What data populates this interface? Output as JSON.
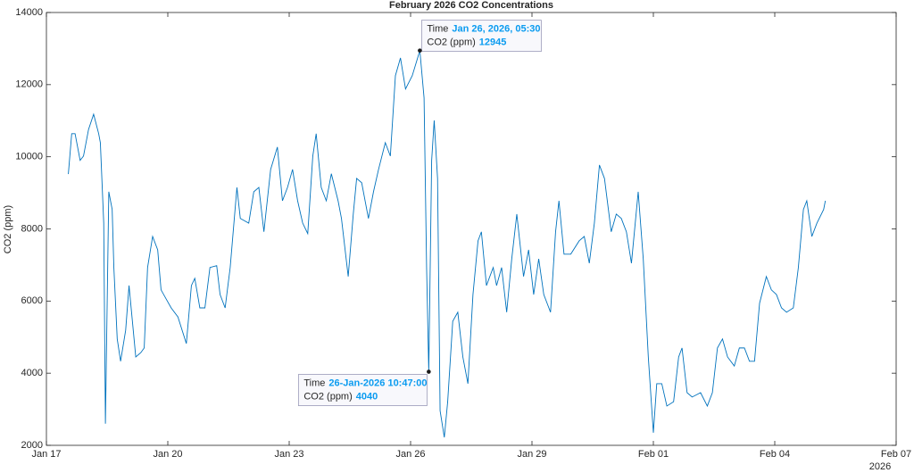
{
  "chart_data": {
    "type": "line",
    "title": "February 2026 CO2 Concentrations",
    "ylabel": "CO2 (ppm)",
    "x_secondary_label": "2026",
    "xlim": [
      "2026-01-17T00:00",
      "2026-02-07T00:00"
    ],
    "xticks": [
      {
        "value": "2026-01-17T00:00",
        "label": "Jan 17"
      },
      {
        "value": "2026-01-20T00:00",
        "label": "Jan 20"
      },
      {
        "value": "2026-01-23T00:00",
        "label": "Jan 23"
      },
      {
        "value": "2026-01-26T00:00",
        "label": "Jan 26"
      },
      {
        "value": "2026-01-29T00:00",
        "label": "Jan 29"
      },
      {
        "value": "2026-02-01T00:00",
        "label": "Feb 01"
      },
      {
        "value": "2026-02-04T00:00",
        "label": "Feb 04"
      },
      {
        "value": "2026-02-07T00:00",
        "label": "Feb 07"
      }
    ],
    "ylim": [
      2000,
      14000
    ],
    "yticks": [
      2000,
      4000,
      6000,
      8000,
      10000,
      12000,
      14000
    ],
    "grid": false,
    "x": [
      "2026-01-17T13:00",
      "2026-01-17T15:00",
      "2026-01-17T17:00",
      "2026-01-17T20:00",
      "2026-01-17T22:00",
      "2026-01-18T01:00",
      "2026-01-18T04:00",
      "2026-01-18T07:00",
      "2026-01-18T08:00",
      "2026-01-18T10:00",
      "2026-01-18T11:00",
      "2026-01-18T13:00",
      "2026-01-18T15:00",
      "2026-01-18T16:00",
      "2026-01-18T18:00",
      "2026-01-18T20:00",
      "2026-01-18T23:00",
      "2026-01-19T01:00",
      "2026-01-19T03:00",
      "2026-01-19T05:00",
      "2026-01-19T08:00",
      "2026-01-19T10:00",
      "2026-01-19T12:00",
      "2026-01-19T15:00",
      "2026-01-19T18:00",
      "2026-01-19T20:00",
      "2026-01-19T23:00",
      "2026-01-20T02:00",
      "2026-01-20T06:00",
      "2026-01-20T11:00",
      "2026-01-20T14:00",
      "2026-01-20T16:00",
      "2026-01-20T19:00",
      "2026-01-20T22:00",
      "2026-01-21T01:00",
      "2026-01-21T05:00",
      "2026-01-21T07:00",
      "2026-01-21T10:00",
      "2026-01-21T13:00",
      "2026-01-21T17:00",
      "2026-01-21T19:00",
      "2026-01-22T00:00",
      "2026-01-22T03:00",
      "2026-01-22T06:00",
      "2026-01-22T09:00",
      "2026-01-22T13:00",
      "2026-01-22T17:00",
      "2026-01-22T20:00",
      "2026-01-22T23:00",
      "2026-01-23T02:00",
      "2026-01-23T05:00",
      "2026-01-23T08:00",
      "2026-01-23T11:00",
      "2026-01-23T14:00",
      "2026-01-23T16:00",
      "2026-01-23T19:00",
      "2026-01-23T22:00",
      "2026-01-24T01:00",
      "2026-01-24T05:00",
      "2026-01-24T07:00",
      "2026-01-24T11:00",
      "2026-01-24T14:00",
      "2026-01-24T16:00",
      "2026-01-24T19:00",
      "2026-01-24T23:00",
      "2026-01-25T02:00",
      "2026-01-25T05:00",
      "2026-01-25T09:00",
      "2026-01-25T12:00",
      "2026-01-25T15:00",
      "2026-01-25T18:00",
      "2026-01-25T21:00",
      "2026-01-26T01:00",
      "2026-01-26T05:30",
      "2026-01-26T08:00",
      "2026-01-26T09:30",
      "2026-01-26T10:47",
      "2026-01-26T12:30",
      "2026-01-26T14:00",
      "2026-01-26T16:00",
      "2026-01-26T17:30",
      "2026-01-26T20:00",
      "2026-01-26T22:00",
      "2026-01-27T01:00",
      "2026-01-27T04:00",
      "2026-01-27T07:00",
      "2026-01-27T10:00",
      "2026-01-27T13:00",
      "2026-01-27T16:00",
      "2026-01-27T18:00",
      "2026-01-27T21:00",
      "2026-01-28T01:00",
      "2026-01-28T03:00",
      "2026-01-28T06:00",
      "2026-01-28T09:00",
      "2026-01-28T12:00",
      "2026-01-28T15:00",
      "2026-01-28T19:00",
      "2026-01-28T22:00",
      "2026-01-29T01:00",
      "2026-01-29T04:00",
      "2026-01-29T07:00",
      "2026-01-29T11:00",
      "2026-01-29T14:00",
      "2026-01-29T16:00",
      "2026-01-29T19:00",
      "2026-01-29T23:00",
      "2026-01-30T04:00",
      "2026-01-30T07:00",
      "2026-01-30T10:00",
      "2026-01-30T13:00",
      "2026-01-30T16:00",
      "2026-01-30T19:00",
      "2026-01-30T23:00",
      "2026-01-31T02:00",
      "2026-01-31T05:00",
      "2026-01-31T08:00",
      "2026-01-31T11:00",
      "2026-01-31T15:00",
      "2026-01-31T18:00",
      "2026-01-31T21:00",
      "2026-02-01T00:00",
      "2026-02-01T02:00",
      "2026-02-01T05:00",
      "2026-02-01T08:00",
      "2026-02-01T12:00",
      "2026-02-01T15:00",
      "2026-02-01T17:00",
      "2026-02-01T20:00",
      "2026-02-01T23:00",
      "2026-02-02T04:00",
      "2026-02-02T08:00",
      "2026-02-02T11:00",
      "2026-02-02T14:00",
      "2026-02-02T17:00",
      "2026-02-02T20:00",
      "2026-02-03T00:00",
      "2026-02-03T03:00",
      "2026-02-03T06:00",
      "2026-02-03T09:00",
      "2026-02-03T12:00",
      "2026-02-03T15:00",
      "2026-02-03T19:00",
      "2026-02-03T22:00",
      "2026-02-04T01:00",
      "2026-02-04T04:00",
      "2026-02-04T07:00",
      "2026-02-04T11:00",
      "2026-02-04T14:00",
      "2026-02-04T17:00",
      "2026-02-04T19:00",
      "2026-02-04T22:00",
      "2026-02-05T01:00",
      "2026-02-05T05:00",
      "2026-02-05T06:00"
    ],
    "series": [
      {
        "name": "CO2 (ppm)",
        "color": "#0072bd",
        "values": [
          9520,
          10640,
          10640,
          9900,
          10020,
          10760,
          11180,
          10640,
          10390,
          8160,
          2600,
          9030,
          8540,
          6930,
          4950,
          4330,
          5190,
          6430,
          5440,
          4450,
          4570,
          4700,
          6930,
          7790,
          7420,
          6310,
          6060,
          5810,
          5560,
          4820,
          6430,
          6630,
          5810,
          5810,
          6930,
          6980,
          6180,
          5810,
          6930,
          9150,
          8290,
          8160,
          9030,
          9150,
          7920,
          9650,
          10270,
          8780,
          9150,
          9650,
          8780,
          8160,
          7870,
          10020,
          10640,
          9150,
          8780,
          9530,
          8780,
          8290,
          6680,
          8410,
          9400,
          9280,
          8290,
          9030,
          9650,
          10390,
          10020,
          12250,
          12740,
          11880,
          12250,
          12945,
          11630,
          6930,
          4040,
          9900,
          11010,
          9400,
          2960,
          2220,
          3210,
          5440,
          5690,
          4450,
          3710,
          6180,
          7670,
          7920,
          6430,
          6930,
          6430,
          6930,
          5690,
          7170,
          8410,
          6680,
          7420,
          6180,
          7170,
          6180,
          5690,
          7920,
          8780,
          7300,
          7300,
          7670,
          7790,
          7050,
          8160,
          9770,
          9400,
          7920,
          8410,
          8290,
          7920,
          7050,
          9030,
          7170,
          4450,
          2350,
          3710,
          3710,
          3090,
          3210,
          4450,
          4700,
          3460,
          3340,
          3460,
          3090,
          3460,
          4700,
          4950,
          4450,
          4200,
          4700,
          4700,
          4330,
          4330,
          5940,
          6680,
          6310,
          6180,
          5810,
          5690,
          5810,
          6930,
          8540,
          8780,
          7790,
          8160,
          8540,
          8780
        ]
      }
    ],
    "datatips": [
      {
        "x": "2026-01-26T05:30",
        "y": 12945,
        "time_key": "Time",
        "time_label": "Jan 26, 2026, 05:30",
        "value_key": "CO2 (ppm)"
      },
      {
        "x": "2026-01-26T10:47",
        "y": 4040,
        "time_key": "Time",
        "time_label": "26-Jan-2026 10:47:00",
        "value_key": "CO2 (ppm)"
      }
    ]
  }
}
